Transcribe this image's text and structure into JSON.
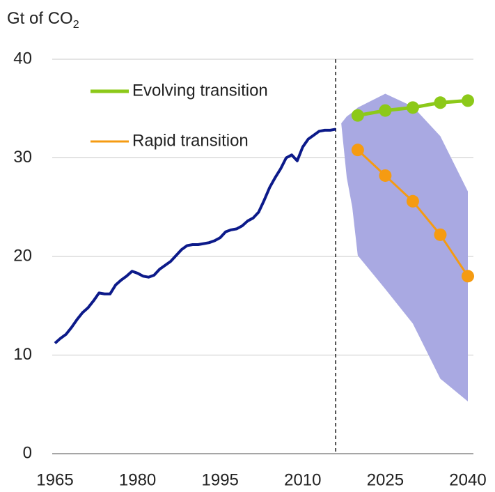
{
  "chart_data": {
    "type": "line",
    "y_label": {
      "text": "Gt of CO",
      "subscript": "2"
    },
    "xlim": [
      1965,
      2040
    ],
    "xticks": [
      1965,
      1980,
      1995,
      2010,
      2025,
      2040
    ],
    "ylim": [
      0,
      40
    ],
    "yticks": [
      0,
      10,
      20,
      30,
      40
    ],
    "grid": true,
    "divider": 2016,
    "history": {
      "color": "#0c1a8a",
      "x": [
        1965,
        1966,
        1967,
        1968,
        1969,
        1970,
        1971,
        1972,
        1973,
        1974,
        1975,
        1976,
        1977,
        1978,
        1979,
        1980,
        1981,
        1982,
        1983,
        1984,
        1985,
        1986,
        1987,
        1988,
        1989,
        1990,
        1991,
        1992,
        1993,
        1994,
        1995,
        1996,
        1997,
        1998,
        1999,
        2000,
        2001,
        2002,
        2003,
        2004,
        2005,
        2006,
        2007,
        2008,
        2009,
        2010,
        2011,
        2012,
        2013,
        2014,
        2015,
        2016
      ],
      "values": [
        11.2,
        11.7,
        12.1,
        12.8,
        13.6,
        14.3,
        14.8,
        15.5,
        16.3,
        16.2,
        16.2,
        17.1,
        17.6,
        18.0,
        18.5,
        18.3,
        18.0,
        17.9,
        18.1,
        18.7,
        19.1,
        19.5,
        20.1,
        20.7,
        21.1,
        21.2,
        21.2,
        21.3,
        21.4,
        21.6,
        21.9,
        22.5,
        22.7,
        22.8,
        23.1,
        23.6,
        23.9,
        24.5,
        25.7,
        27.0,
        28.0,
        28.9,
        30.0,
        30.3,
        29.7,
        31.1,
        31.9,
        32.3,
        32.7,
        32.8,
        32.8,
        32.9
      ]
    },
    "band": {
      "color": "#a9a9e2",
      "x": [
        2017,
        2018,
        2019,
        2020,
        2025,
        2030,
        2035,
        2040
      ],
      "upper": [
        33.5,
        34.2,
        34.6,
        35.1,
        36.5,
        35.2,
        32.2,
        26.6
      ],
      "lower": [
        33.5,
        28.0,
        25.0,
        20.1,
        16.7,
        13.2,
        7.6,
        5.3
      ]
    },
    "series_x": [
      2020,
      2025,
      2030,
      2035,
      2040
    ],
    "series": [
      {
        "name": "Evolving transition",
        "color": "#8cc919",
        "values": [
          34.3,
          34.8,
          35.1,
          35.6,
          35.8
        ]
      },
      {
        "name": "Rapid transition",
        "color": "#f59b12",
        "values": [
          30.8,
          28.2,
          25.6,
          22.2,
          18.0
        ]
      }
    ]
  }
}
